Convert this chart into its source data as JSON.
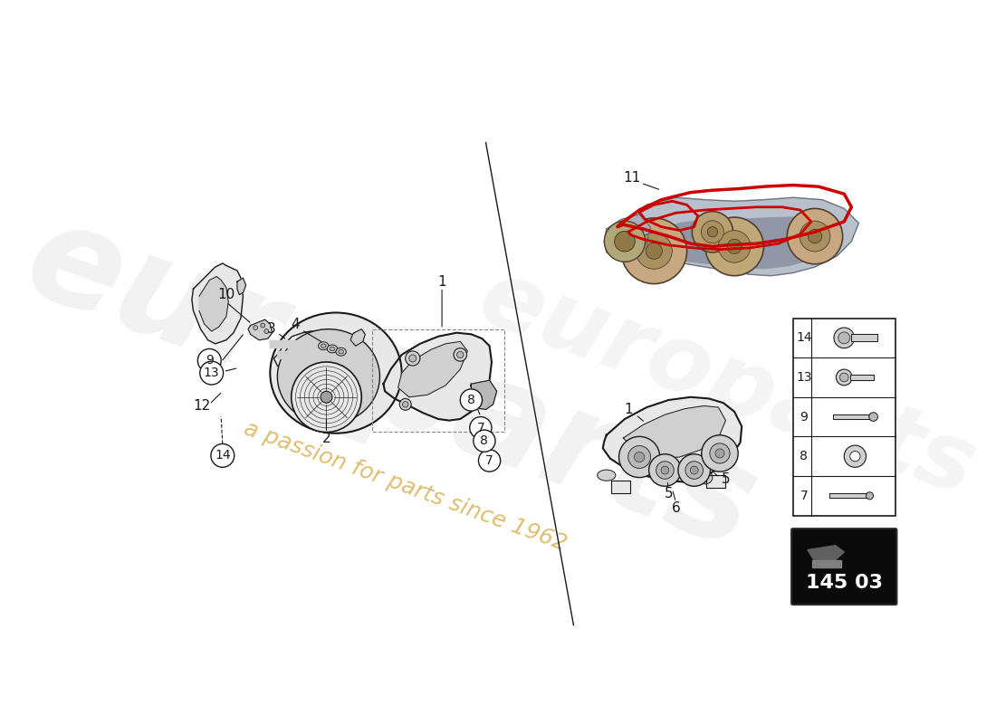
{
  "bg_color": "#ffffff",
  "line_color": "#1a1a1a",
  "fill_light": "#e8e8e8",
  "fill_mid": "#d0d0d0",
  "fill_dark": "#b8b8b8",
  "fill_darker": "#a0a0a0",
  "red_belt": "#cc0000",
  "watermark_gray": "#cccccc",
  "slogan_color": "#d4a843",
  "part_number": "145 03",
  "watermark_text": "europarts",
  "slogan_text": "a passion for parts since 1962",
  "panel_labels": [
    "14",
    "13",
    "9",
    "8",
    "7"
  ],
  "circle_labels": [
    "7",
    "7",
    "8",
    "8",
    "9",
    "13",
    "14"
  ]
}
